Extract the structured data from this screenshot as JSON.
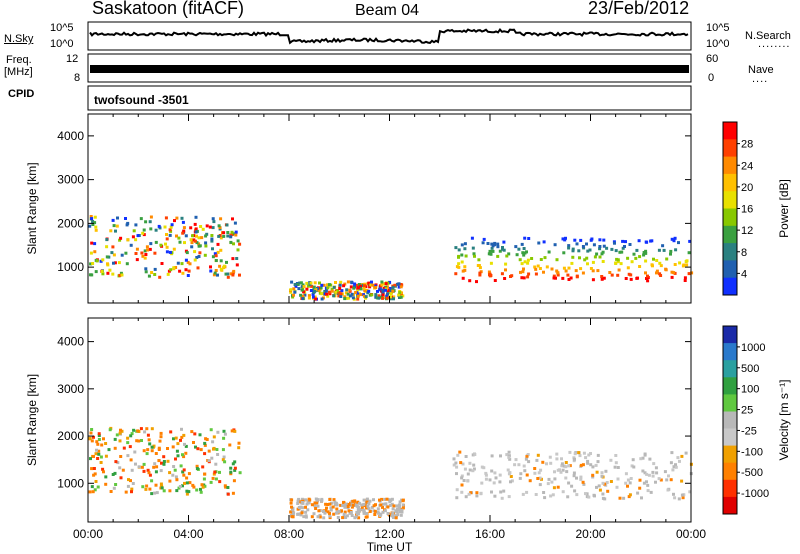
{
  "header": {
    "station": "Saskatoon (fitACF)",
    "beam": "Beam 04",
    "date": "23/Feb/2012"
  },
  "top_panels": {
    "nsky_label": "N.Sky",
    "nsearch_label": "N.Search",
    "nsearch_dots": "........",
    "freq_label_1": "Freq.",
    "freq_label_2": "[MHz]",
    "cpid_label": "CPID",
    "nave_label": "Nave",
    "nave_dots": "....",
    "nsky_ticks": [
      "10^5",
      "10^0"
    ],
    "nsearch_ticks": [
      "10^5",
      "10^0"
    ],
    "freq_ticks": [
      "12",
      "8"
    ],
    "nave_ticks": [
      "60",
      "0"
    ],
    "cpid_text": "twofsound -3501"
  },
  "chart_data": [
    {
      "type": "heatmap",
      "title": "Power",
      "ylabel": "Slant Range [km]",
      "xlabel": "Time UT",
      "ylim": [
        180,
        4500
      ],
      "y_ticks": [
        "1000",
        "2000",
        "3000",
        "4000"
      ],
      "colorbar": {
        "label": "Power [dB]",
        "ticks": [
          "28",
          "24",
          "20",
          "16",
          "12",
          "8",
          "4"
        ],
        "colors": [
          "#ff0000",
          "#ff4000",
          "#ff8a00",
          "#ffc000",
          "#e8e000",
          "#88c800",
          "#3aa040",
          "#2a8080",
          "#2060b0",
          "#1030ff"
        ]
      },
      "echo_regions": [
        {
          "t0": 0.0,
          "t1": 6.0,
          "r0": 800,
          "r1": 2200,
          "level": "mixed-high"
        },
        {
          "t0": 8.0,
          "t1": 12.5,
          "r0": 300,
          "r1": 700,
          "level": "mixed-low"
        },
        {
          "t0": 14.5,
          "t1": 24.0,
          "r0": 700,
          "r1": 1700,
          "level": "high-bottom"
        }
      ]
    },
    {
      "type": "heatmap",
      "title": "Velocity",
      "ylabel": "Slant Range [km]",
      "xlabel": "Time UT",
      "ylim": [
        180,
        4500
      ],
      "y_ticks": [
        "1000",
        "2000",
        "3000",
        "4000"
      ],
      "colorbar": {
        "label": "Velocity [m s⁻¹]",
        "ticks": [
          "1000",
          "500",
          "100",
          "25",
          "-25",
          "-100",
          "-500",
          "-1000"
        ],
        "colors": [
          "#1a2aa8",
          "#2a7acc",
          "#2aa0a0",
          "#30a040",
          "#60c840",
          "#b8b8b8",
          "#c8c8c8",
          "#f0a000",
          "#ff8000",
          "#ff3000",
          "#e00000"
        ]
      },
      "echo_regions": [
        {
          "t0": 0.0,
          "t1": 6.0,
          "r0": 800,
          "r1": 2200,
          "level": "orange-green"
        },
        {
          "t0": 8.0,
          "t1": 12.5,
          "r0": 300,
          "r1": 700,
          "level": "grey-orange"
        },
        {
          "t0": 14.5,
          "t1": 24.0,
          "r0": 700,
          "r1": 1700,
          "level": "grey"
        }
      ]
    }
  ],
  "x_axis": {
    "ticks": [
      "00:00",
      "04:00",
      "08:00",
      "12:00",
      "16:00",
      "20:00",
      "00:00"
    ],
    "label": "Time UT"
  }
}
